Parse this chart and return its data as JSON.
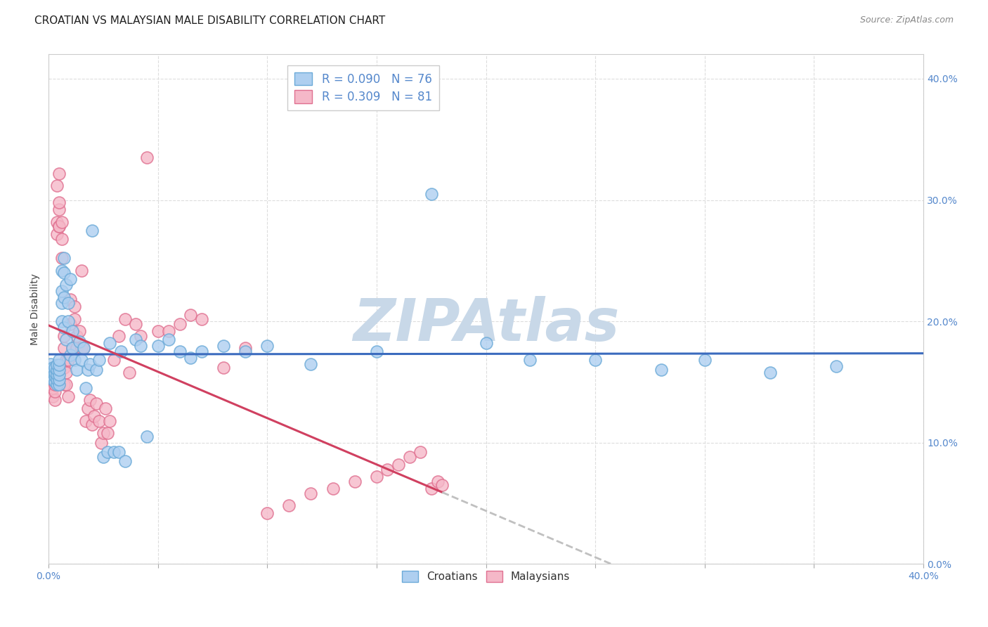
{
  "title": "CROATIAN VS MALAYSIAN MALE DISABILITY CORRELATION CHART",
  "source": "Source: ZipAtlas.com",
  "ylabel": "Male Disability",
  "xlim": [
    0.0,
    0.4
  ],
  "ylim": [
    0.0,
    0.42
  ],
  "croatians": {
    "R": 0.09,
    "N": 76,
    "color": "#AECFF0",
    "edge_color": "#6BAAD8",
    "x": [
      0.001,
      0.001,
      0.001,
      0.002,
      0.002,
      0.002,
      0.003,
      0.003,
      0.003,
      0.003,
      0.004,
      0.004,
      0.004,
      0.004,
      0.004,
      0.005,
      0.005,
      0.005,
      0.005,
      0.005,
      0.005,
      0.006,
      0.006,
      0.006,
      0.006,
      0.007,
      0.007,
      0.007,
      0.007,
      0.008,
      0.008,
      0.009,
      0.009,
      0.01,
      0.01,
      0.011,
      0.011,
      0.012,
      0.013,
      0.014,
      0.015,
      0.016,
      0.017,
      0.018,
      0.019,
      0.02,
      0.022,
      0.023,
      0.025,
      0.027,
      0.028,
      0.03,
      0.032,
      0.033,
      0.035,
      0.04,
      0.042,
      0.045,
      0.05,
      0.055,
      0.06,
      0.065,
      0.07,
      0.08,
      0.09,
      0.1,
      0.12,
      0.15,
      0.175,
      0.2,
      0.22,
      0.25,
      0.28,
      0.3,
      0.33,
      0.36
    ],
    "y": [
      0.155,
      0.16,
      0.165,
      0.152,
      0.158,
      0.162,
      0.15,
      0.155,
      0.158,
      0.162,
      0.148,
      0.152,
      0.156,
      0.16,
      0.164,
      0.148,
      0.152,
      0.156,
      0.16,
      0.164,
      0.168,
      0.2,
      0.215,
      0.225,
      0.242,
      0.195,
      0.22,
      0.24,
      0.252,
      0.185,
      0.23,
      0.2,
      0.215,
      0.172,
      0.235,
      0.178,
      0.192,
      0.168,
      0.16,
      0.183,
      0.168,
      0.178,
      0.145,
      0.16,
      0.165,
      0.275,
      0.16,
      0.168,
      0.088,
      0.092,
      0.182,
      0.092,
      0.092,
      0.175,
      0.085,
      0.185,
      0.18,
      0.105,
      0.18,
      0.185,
      0.175,
      0.17,
      0.175,
      0.18,
      0.175,
      0.18,
      0.165,
      0.175,
      0.305,
      0.182,
      0.168,
      0.168,
      0.16,
      0.168,
      0.158,
      0.163
    ]
  },
  "malaysians": {
    "R": 0.309,
    "N": 81,
    "color": "#F5B8C8",
    "edge_color": "#E07090",
    "x": [
      0.001,
      0.001,
      0.001,
      0.002,
      0.002,
      0.002,
      0.002,
      0.003,
      0.003,
      0.003,
      0.003,
      0.004,
      0.004,
      0.004,
      0.005,
      0.005,
      0.005,
      0.005,
      0.005,
      0.006,
      0.006,
      0.006,
      0.007,
      0.007,
      0.007,
      0.007,
      0.008,
      0.008,
      0.008,
      0.009,
      0.009,
      0.01,
      0.01,
      0.011,
      0.012,
      0.012,
      0.013,
      0.013,
      0.014,
      0.015,
      0.015,
      0.016,
      0.017,
      0.018,
      0.019,
      0.02,
      0.021,
      0.022,
      0.023,
      0.024,
      0.025,
      0.026,
      0.027,
      0.028,
      0.03,
      0.032,
      0.035,
      0.037,
      0.04,
      0.042,
      0.045,
      0.05,
      0.055,
      0.06,
      0.065,
      0.07,
      0.08,
      0.09,
      0.1,
      0.11,
      0.12,
      0.13,
      0.14,
      0.15,
      0.155,
      0.16,
      0.165,
      0.17,
      0.175,
      0.178,
      0.18
    ],
    "y": [
      0.148,
      0.152,
      0.155,
      0.138,
      0.145,
      0.152,
      0.158,
      0.135,
      0.142,
      0.148,
      0.158,
      0.272,
      0.282,
      0.312,
      0.278,
      0.292,
      0.298,
      0.322,
      0.278,
      0.252,
      0.268,
      0.282,
      0.148,
      0.162,
      0.178,
      0.188,
      0.148,
      0.158,
      0.168,
      0.138,
      0.168,
      0.198,
      0.218,
      0.178,
      0.202,
      0.212,
      0.178,
      0.188,
      0.192,
      0.178,
      0.242,
      0.178,
      0.118,
      0.128,
      0.135,
      0.115,
      0.122,
      0.132,
      0.118,
      0.1,
      0.108,
      0.128,
      0.108,
      0.118,
      0.168,
      0.188,
      0.202,
      0.158,
      0.198,
      0.188,
      0.335,
      0.192,
      0.192,
      0.198,
      0.205,
      0.202,
      0.162,
      0.178,
      0.042,
      0.048,
      0.058,
      0.062,
      0.068,
      0.072,
      0.078,
      0.082,
      0.088,
      0.092,
      0.062,
      0.068,
      0.065
    ]
  },
  "line_croatian_color": "#3B6BBE",
  "line_malaysian_color": "#D04060",
  "line_dash_color": "#C0C0C0",
  "watermark": "ZIPAtlas",
  "watermark_color": "#C8D8E8",
  "background_color": "#FFFFFF",
  "grid_color": "#DDDDDD",
  "title_fontsize": 11,
  "axis_label_fontsize": 10,
  "tick_label_color": "#5588CC",
  "tick_label_fontsize": 10,
  "yticks": [
    0.0,
    0.1,
    0.2,
    0.3,
    0.4
  ],
  "xtick_show": [
    0.0,
    0.4
  ],
  "xticks_minor": [
    0.05,
    0.1,
    0.15,
    0.2,
    0.25,
    0.3,
    0.35
  ]
}
